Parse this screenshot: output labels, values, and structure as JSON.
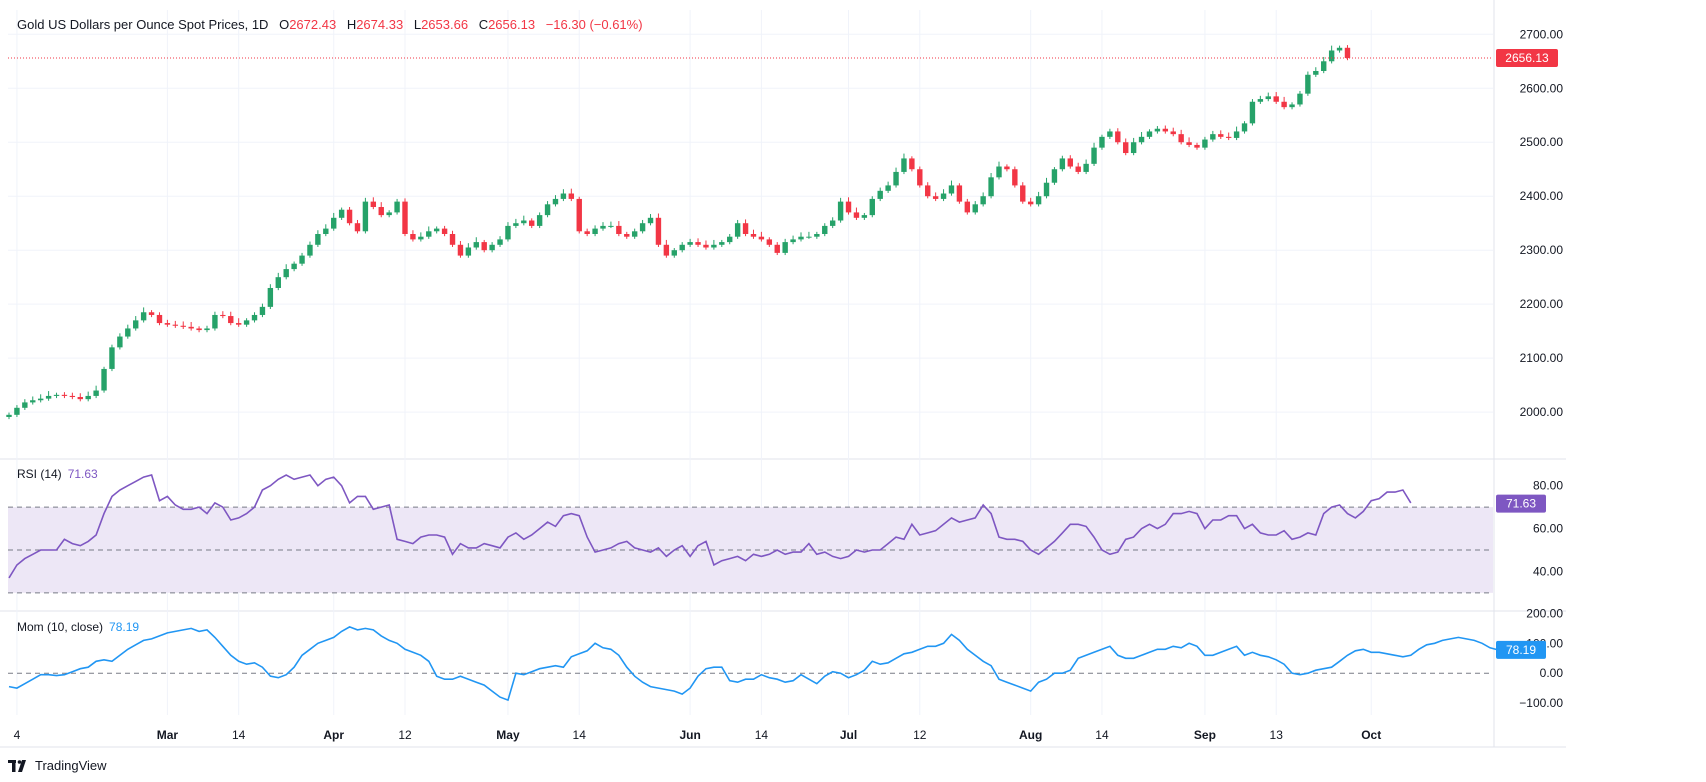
{
  "header": {
    "title": "Gold US Dollars per Ounce Spot Prices, 1D",
    "open_label": "O",
    "open": "2672.43",
    "high_label": "H",
    "high": "2674.33",
    "low_label": "L",
    "low": "2653.66",
    "close_label": "C",
    "close": "2656.13",
    "change": "−16.30 (−0.61%)"
  },
  "rsi_panel": {
    "label": "RSI (14)",
    "value": "71.63"
  },
  "mom_panel": {
    "label": "Mom (10, close)",
    "value": "78.19"
  },
  "brand": "TradingView",
  "colors": {
    "up": "#26a269",
    "down": "#f23645",
    "rsi": "#7e57c2",
    "mom": "#2196f3",
    "rsi_band": "#ede7f6"
  },
  "chart_data": [
    {
      "type": "candlestick",
      "title": "Gold US Dollars per Ounce Spot Prices, 1D",
      "y_ticks": [
        "2000.00",
        "2100.00",
        "2200.00",
        "2300.00",
        "2400.00",
        "2500.00",
        "2600.00",
        "2700.00"
      ],
      "ylim": [
        1915,
        2745
      ],
      "x_ticks": [
        {
          "label": "4",
          "date": "2024-02-05",
          "bold": false
        },
        {
          "label": "Mar",
          "date": "2024-03-01",
          "bold": true
        },
        {
          "label": "14",
          "date": "2024-03-14",
          "bold": false
        },
        {
          "label": "Apr",
          "date": "2024-04-01",
          "bold": true
        },
        {
          "label": "12",
          "date": "2024-04-12",
          "bold": false
        },
        {
          "label": "May",
          "date": "2024-05-01",
          "bold": true
        },
        {
          "label": "14",
          "date": "2024-05-14",
          "bold": false
        },
        {
          "label": "Jun",
          "date": "2024-06-03",
          "bold": true
        },
        {
          "label": "14",
          "date": "2024-06-14",
          "bold": false
        },
        {
          "label": "Jul",
          "date": "2024-07-01",
          "bold": true
        },
        {
          "label": "12",
          "date": "2024-07-12",
          "bold": false
        },
        {
          "label": "Aug",
          "date": "2024-08-01",
          "bold": true
        },
        {
          "label": "14",
          "date": "2024-08-14",
          "bold": false
        },
        {
          "label": "Sep",
          "date": "2024-09-02",
          "bold": true
        },
        {
          "label": "13",
          "date": "2024-09-13",
          "bold": false
        },
        {
          "label": "Oct",
          "date": "2024-10-01",
          "bold": true
        }
      ],
      "last_price": "2656.13",
      "grid": true,
      "closes": [
        1995,
        2008,
        2018,
        2022,
        2025,
        2030,
        2032,
        2030,
        2028,
        2024,
        2030,
        2040,
        2080,
        2120,
        2140,
        2155,
        2170,
        2185,
        2180,
        2165,
        2162,
        2160,
        2158,
        2155,
        2152,
        2155,
        2180,
        2178,
        2165,
        2162,
        2170,
        2180,
        2195,
        2230,
        2250,
        2265,
        2275,
        2290,
        2310,
        2330,
        2340,
        2360,
        2375,
        2350,
        2335,
        2390,
        2380,
        2365,
        2370,
        2390,
        2330,
        2320,
        2325,
        2335,
        2340,
        2330,
        2310,
        2290,
        2305,
        2315,
        2300,
        2310,
        2320,
        2345,
        2350,
        2355,
        2345,
        2365,
        2385,
        2395,
        2405,
        2395,
        2335,
        2330,
        2340,
        2345,
        2345,
        2330,
        2325,
        2335,
        2350,
        2360,
        2310,
        2290,
        2300,
        2310,
        2315,
        2310,
        2305,
        2310,
        2315,
        2325,
        2350,
        2330,
        2325,
        2320,
        2310,
        2295,
        2315,
        2320,
        2325,
        2325,
        2330,
        2345,
        2355,
        2390,
        2370,
        2360,
        2365,
        2395,
        2410,
        2420,
        2445,
        2470,
        2450,
        2420,
        2400,
        2395,
        2405,
        2420,
        2390,
        2370,
        2385,
        2400,
        2435,
        2455,
        2450,
        2420,
        2390,
        2385,
        2400,
        2425,
        2450,
        2470,
        2455,
        2445,
        2460,
        2490,
        2510,
        2520,
        2500,
        2480,
        2500,
        2510,
        2520,
        2525,
        2520,
        2515,
        2500,
        2495,
        2490,
        2505,
        2515,
        2510,
        2508,
        2520,
        2535,
        2575,
        2580,
        2585,
        2575,
        2565,
        2570,
        2590,
        2625,
        2632,
        2650,
        2670,
        2675,
        2656
      ]
    },
    {
      "type": "line",
      "name": "RSI (14)",
      "y_ticks": [
        "40.00",
        "60.00",
        "80.00"
      ],
      "ylim": [
        22,
        92
      ],
      "band": [
        30,
        70
      ],
      "midline": 50,
      "last_value": "71.63",
      "values": [
        37,
        43,
        46,
        48,
        50,
        50,
        50,
        55,
        53,
        52,
        54,
        57,
        67,
        75,
        78,
        80,
        82,
        84,
        85,
        73,
        75,
        71,
        69,
        69,
        70,
        67,
        72,
        70,
        64,
        65,
        67,
        70,
        78,
        80,
        83,
        85,
        83,
        84,
        85,
        80,
        83,
        84,
        80,
        72,
        75,
        75,
        69,
        70,
        71,
        55,
        54,
        53,
        56,
        57,
        57,
        56,
        48,
        53,
        51,
        51,
        53,
        52,
        51,
        56,
        58,
        55,
        57,
        60,
        63,
        61,
        66,
        67,
        66,
        56,
        49,
        50,
        51,
        53,
        54,
        51,
        50,
        49,
        51,
        47,
        50,
        52,
        47,
        52,
        54,
        43,
        45,
        46,
        47,
        45,
        48,
        47,
        48,
        50,
        48,
        49,
        49,
        53,
        48,
        49,
        47,
        46,
        47,
        50,
        49,
        50,
        50,
        53,
        56,
        55,
        62,
        57,
        58,
        59,
        62,
        65,
        63,
        64,
        65,
        71,
        67,
        56,
        55,
        55,
        54,
        50,
        48,
        51,
        54,
        58,
        62,
        62,
        61,
        56,
        50,
        48,
        49,
        55,
        56,
        60,
        62,
        60,
        62,
        67,
        67,
        68,
        67,
        60,
        64,
        64,
        66,
        66,
        60,
        62,
        58,
        57,
        57,
        59,
        55,
        56,
        58,
        57,
        67,
        70,
        71,
        67,
        65,
        68,
        73,
        74,
        77,
        77,
        78,
        72
      ]
    },
    {
      "type": "line",
      "name": "Mom (10, close)",
      "y_ticks": [
        "200.00",
        "100.00",
        "0.00",
        "−100.00"
      ],
      "ylim": [
        -140,
        205
      ],
      "midline": 0,
      "last_value": "78.19",
      "values": [
        -45,
        -50,
        -35,
        -20,
        -5,
        -5,
        -8,
        -5,
        5,
        15,
        20,
        40,
        45,
        40,
        60,
        80,
        95,
        110,
        115,
        125,
        135,
        140,
        145,
        150,
        140,
        145,
        120,
        90,
        60,
        40,
        30,
        35,
        20,
        -10,
        -15,
        -5,
        20,
        60,
        80,
        100,
        110,
        120,
        140,
        155,
        145,
        150,
        145,
        125,
        110,
        100,
        80,
        70,
        60,
        40,
        -10,
        -20,
        -20,
        -10,
        -20,
        -30,
        -40,
        -60,
        -80,
        -90,
        0,
        -5,
        5,
        15,
        20,
        25,
        20,
        55,
        65,
        75,
        100,
        85,
        80,
        60,
        20,
        -10,
        -30,
        -45,
        -50,
        -55,
        -60,
        -70,
        -50,
        -10,
        15,
        20,
        20,
        -25,
        -30,
        -20,
        -20,
        -5,
        -15,
        -20,
        -30,
        -25,
        -5,
        -20,
        -35,
        -10,
        5,
        0,
        -15,
        -5,
        10,
        40,
        30,
        35,
        50,
        65,
        70,
        80,
        90,
        90,
        100,
        130,
        110,
        80,
        60,
        40,
        25,
        -20,
        -30,
        -40,
        -50,
        -60,
        -30,
        -20,
        0,
        0,
        10,
        50,
        60,
        70,
        80,
        90,
        60,
        50,
        50,
        60,
        70,
        80,
        80,
        90,
        85,
        100,
        90,
        60,
        60,
        70,
        80,
        90,
        60,
        70,
        60,
        55,
        45,
        30,
        0,
        -5,
        0,
        10,
        15,
        20,
        40,
        60,
        75,
        80,
        70,
        70,
        65,
        60,
        55,
        60,
        80,
        95,
        100,
        110,
        115,
        120,
        115,
        110,
        100,
        85,
        78
      ]
    }
  ]
}
